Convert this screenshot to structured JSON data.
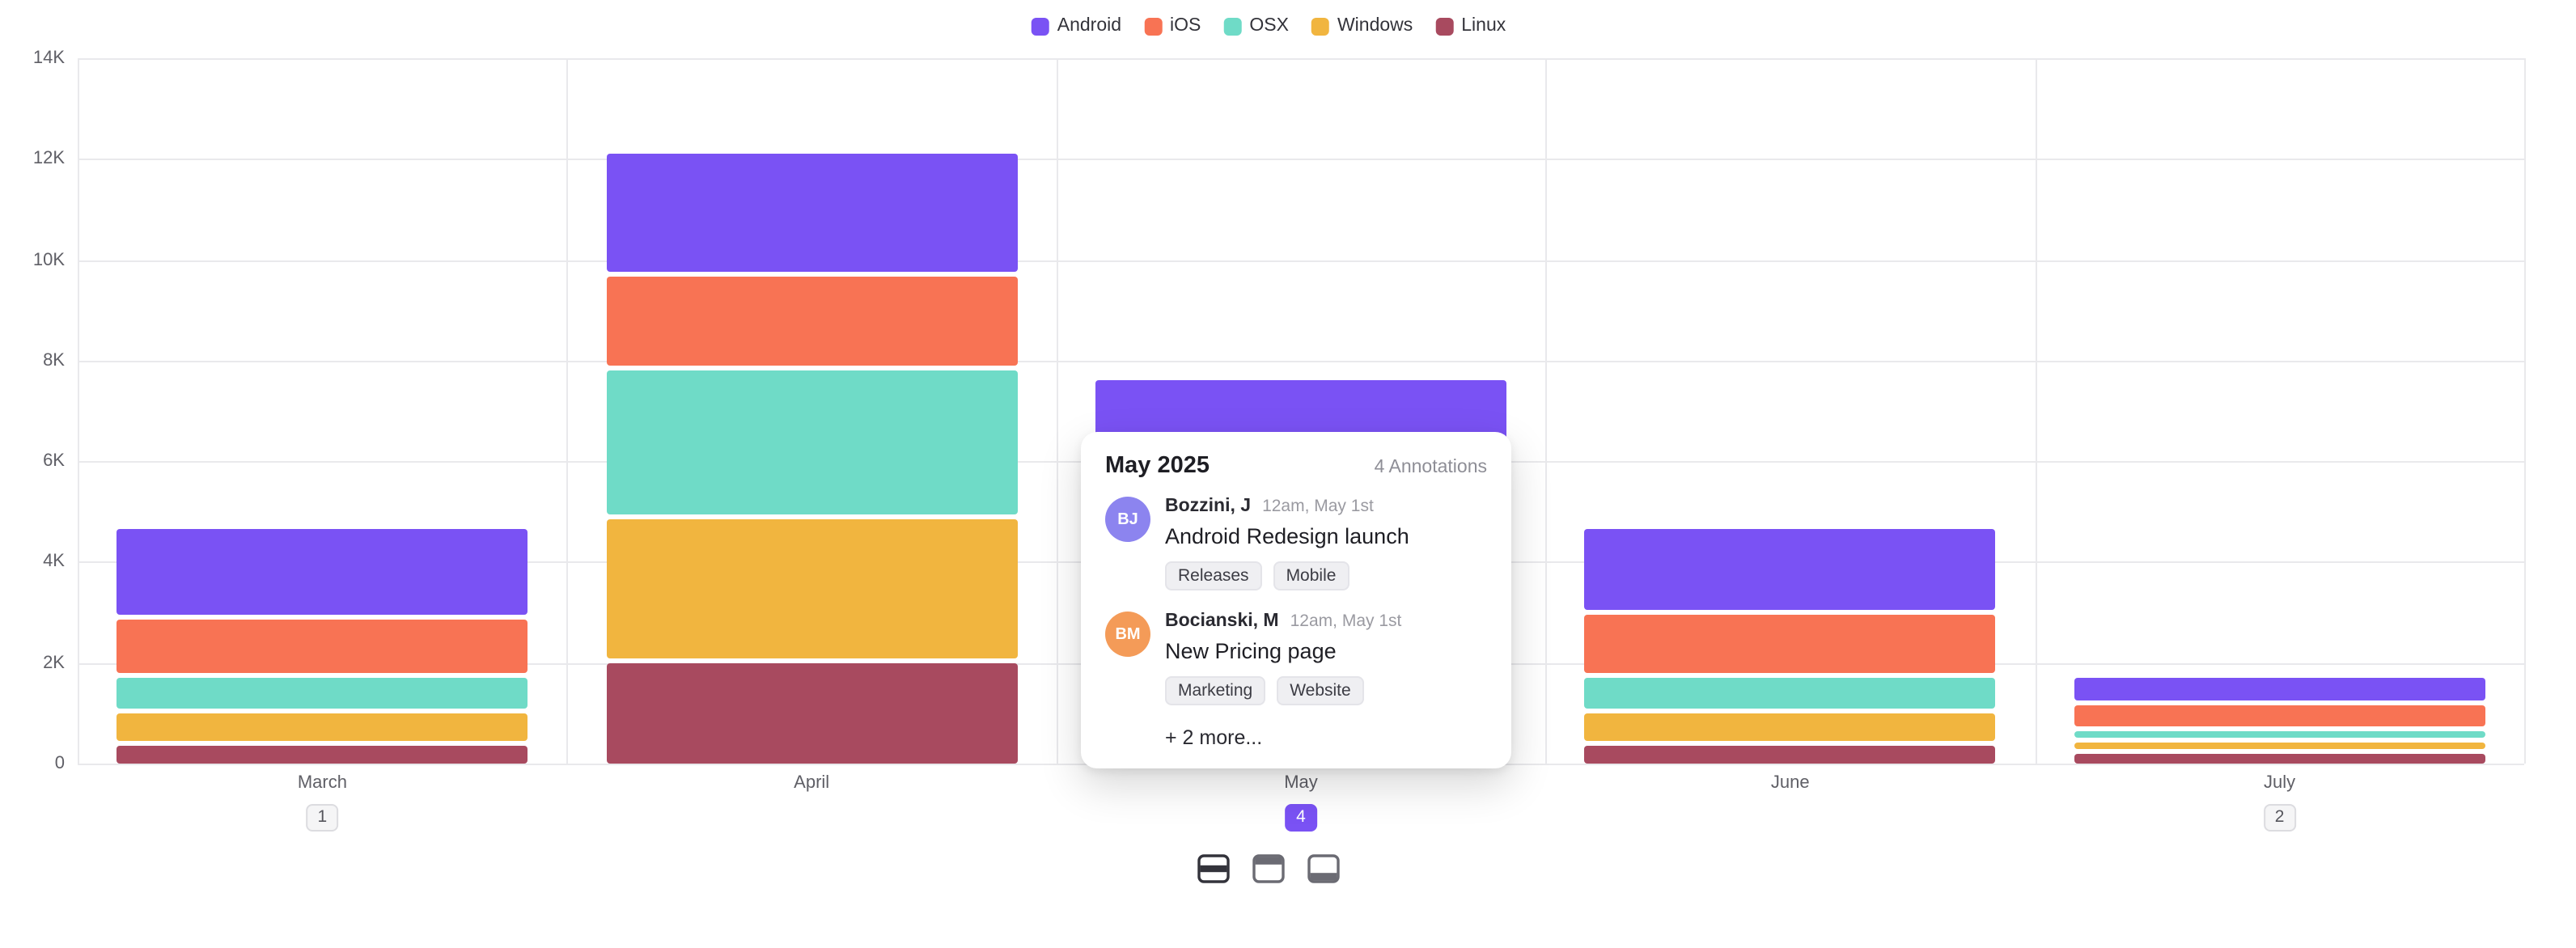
{
  "chart_data": {
    "type": "bar",
    "stacked": true,
    "title": "",
    "categories": [
      "March",
      "April",
      "May",
      "June",
      "July"
    ],
    "series": [
      {
        "name": "Android",
        "color": "#7A52F4",
        "values": [
          1700,
          2350,
          2000,
          1600,
          450
        ]
      },
      {
        "name": "iOS",
        "color": "#F87354",
        "values": [
          1150,
          1850,
          1600,
          1250,
          500
        ]
      },
      {
        "name": "OSX",
        "color": "#6FDBC7",
        "values": [
          700,
          2950,
          1500,
          700,
          250
        ]
      },
      {
        "name": "Windows",
        "color": "#F1B53F",
        "values": [
          650,
          2850,
          1400,
          650,
          200
        ]
      },
      {
        "name": "Linux",
        "color": "#A84A5F",
        "values": [
          450,
          2100,
          1100,
          450,
          300
        ]
      }
    ],
    "stack_order_bottom_to_top": [
      "Linux",
      "Windows",
      "OSX",
      "iOS",
      "Android"
    ],
    "ylim": [
      0,
      14000
    ],
    "yticks": [
      0,
      2000,
      4000,
      6000,
      8000,
      10000,
      12000,
      14000
    ],
    "ytick_labels": [
      "0",
      "2K",
      "4K",
      "6K",
      "8K",
      "10K",
      "12K",
      "14K"
    ],
    "grid": true,
    "legend_position": "top"
  },
  "annotation_badges": [
    {
      "category": "March",
      "count": "1",
      "active": false
    },
    {
      "category": "May",
      "count": "4",
      "active": true
    },
    {
      "category": "July",
      "count": "2",
      "active": false
    }
  ],
  "popover": {
    "title": "May 2025",
    "annotations_count_label": "4 Annotations",
    "entries": [
      {
        "initials": "BJ",
        "avatar_color": "#8C84EF",
        "author": "Bozzini, J",
        "timestamp": "12am, May 1st",
        "text": "Android Redesign launch",
        "tags": [
          "Releases",
          "Mobile"
        ]
      },
      {
        "initials": "BM",
        "avatar_color": "#F49B58",
        "author": "Bocianski, M",
        "timestamp": "12am, May 1st",
        "text": "New Pricing page",
        "tags": [
          "Marketing",
          "Website"
        ]
      }
    ],
    "more_label": "+ 2 more..."
  },
  "toolbar": {
    "buttons": [
      {
        "name": "annotations-position-middle-button",
        "icon": "band-middle-icon",
        "selected": true
      },
      {
        "name": "annotations-position-top-button",
        "icon": "band-top-icon",
        "selected": false
      },
      {
        "name": "annotations-position-bottom-button",
        "icon": "band-bottom-icon",
        "selected": false
      }
    ]
  },
  "colors": {
    "grid": "#E9E9EC",
    "axis_text": "#5F5F66",
    "accent": "#7A52F4"
  }
}
